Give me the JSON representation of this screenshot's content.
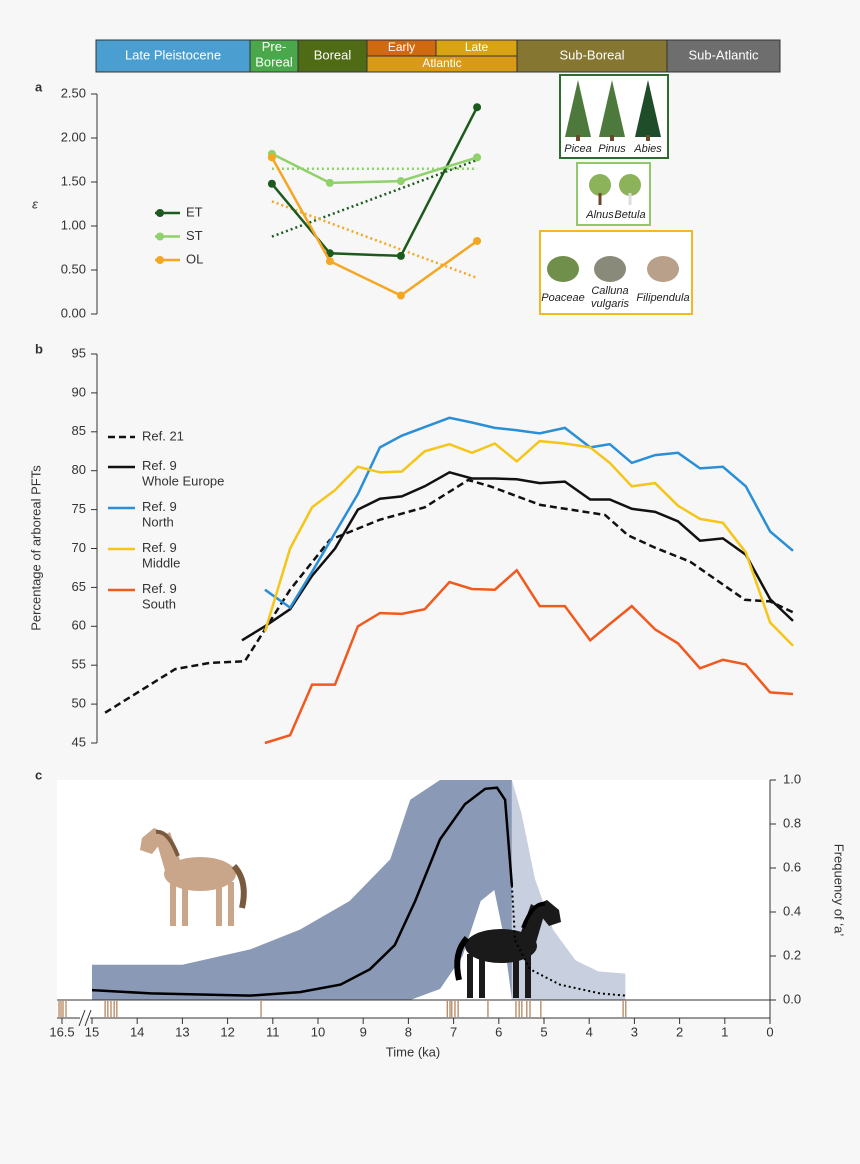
{
  "periods": [
    {
      "label": "Late Pleistocene",
      "color": "#4a9fd0"
    },
    {
      "label": "Pre-\nBoreal",
      "color": "#4aa84b"
    },
    {
      "label": "Boreal",
      "color": "#4f6b15"
    },
    {
      "label": "Early",
      "color": "#d06a10"
    },
    {
      "label": "Late",
      "color": "#d8a414"
    },
    {
      "label": "Atlantic",
      "color": "#d99a18"
    },
    {
      "label": "Sub-Boreal",
      "color": "#857632"
    },
    {
      "label": "Sub-Atlantic",
      "color": "#6e6e6e"
    }
  ],
  "plant_groups": [
    {
      "labels": [
        "Picea",
        "Pinus",
        "Abies"
      ],
      "color": "#2e6b2e"
    },
    {
      "labels": [
        "Alnus",
        "Betula"
      ],
      "color": "#8fc96b"
    },
    {
      "labels": [
        "Poaceae",
        "Calluna\nvulgaris",
        "Filipendula"
      ],
      "color": "#f5b820"
    }
  ],
  "chart_data": [
    {
      "type": "line",
      "panel_label": "a",
      "ylabel": "ε",
      "x": [
        11.15,
        9.91,
        8.39,
        6.76
      ],
      "xlim": [
        15,
        0
      ],
      "ylim": [
        0,
        2.5
      ],
      "yticks": [
        {
          "value": 0,
          "label": "0.00"
        },
        {
          "value": 0.5,
          "label": "0.50"
        },
        {
          "value": 1,
          "label": "1.00"
        },
        {
          "value": 1.5,
          "label": "1.50"
        },
        {
          "value": 2,
          "label": "2.00"
        },
        {
          "value": 2.5,
          "label": "2.50"
        }
      ],
      "series": [
        {
          "name": "ET",
          "color": "#1d5a1d",
          "values": [
            1.48,
            0.69,
            0.66,
            2.35
          ],
          "trend": [
            0.88,
            1.75
          ]
        },
        {
          "name": "ST",
          "color": "#8fd16a",
          "values": [
            1.82,
            1.49,
            1.51,
            1.78
          ],
          "trend": [
            1.65,
            1.65
          ]
        },
        {
          "name": "OL",
          "color": "#f5a623",
          "values": [
            1.78,
            0.6,
            0.21,
            0.83
          ],
          "trend": [
            1.28,
            0.41
          ]
        }
      ]
    },
    {
      "type": "line",
      "panel_label": "b",
      "ylabel": "Percentage of arboreal PFTs",
      "xlim": [
        15,
        0
      ],
      "ylim": [
        45,
        95
      ],
      "yticks": [
        45,
        50,
        55,
        60,
        65,
        70,
        75,
        80,
        85,
        90,
        95
      ],
      "series": [
        {
          "name": "Ref. 21",
          "color": "#111111",
          "dash": "dashed",
          "x": [
            14.72,
            13.22,
            12.48,
            11.73,
            10.76,
            9.91,
            8.84,
            7.88,
            6.95,
            6.48,
            5.41,
            4.02,
            3.53,
            2.95,
            2.2,
            1.03,
            0.49,
            0
          ],
          "values": [
            48.9,
            54.5,
            55.3,
            55.5,
            64.7,
            71.1,
            73.7,
            75.3,
            78.8,
            78,
            75.6,
            74.3,
            71.7,
            70.1,
            68.3,
            63.4,
            63.2,
            61.8
          ]
        },
        {
          "name": "Ref. 9\nWhole Europe",
          "color": "#111111",
          "dash": "solid",
          "x": [
            11.79,
            11.3,
            10.76,
            10.29,
            9.8,
            9.31,
            8.84,
            8.37,
            7.88,
            7.35,
            6.87,
            6.38,
            5.91,
            5.42,
            4.88,
            4.34,
            3.92,
            3.45,
            2.95,
            2.46,
            1.99,
            1.5,
            1.01,
            0.49,
            0
          ],
          "values": [
            58.2,
            60,
            62.2,
            66.5,
            70,
            75,
            76.4,
            76.7,
            78,
            79.8,
            79,
            79,
            78.9,
            78.4,
            78.6,
            76.3,
            76.3,
            75.1,
            74.7,
            73.5,
            71,
            71.3,
            69.2,
            63.5,
            60.7
          ]
        },
        {
          "name": "Ref. 9\nNorth",
          "color": "#2a8fd6",
          "dash": "solid",
          "x": [
            11.3,
            10.76,
            10.29,
            9.8,
            9.31,
            8.84,
            8.37,
            7.88,
            7.35,
            6.87,
            6.38,
            5.91,
            5.42,
            4.88,
            4.34,
            3.92,
            3.45,
            2.95,
            2.46,
            1.99,
            1.5,
            1.01,
            0.49,
            0
          ],
          "values": [
            64.7,
            62.4,
            67,
            72,
            77,
            83,
            84.5,
            85.6,
            86.8,
            86.2,
            85.5,
            85.2,
            84.8,
            85.5,
            83,
            83.4,
            81,
            82,
            82.3,
            80.3,
            80.5,
            78,
            72.2,
            69.7
          ]
        },
        {
          "name": "Ref. 9\nMiddle",
          "color": "#f5c518",
          "dash": "solid",
          "x": [
            11.3,
            10.76,
            10.29,
            9.8,
            9.31,
            8.84,
            8.37,
            7.88,
            7.35,
            6.87,
            6.38,
            5.91,
            5.42,
            4.88,
            4.34,
            3.92,
            3.45,
            2.95,
            2.46,
            1.99,
            1.5,
            1.01,
            0.49,
            0
          ],
          "values": [
            59.3,
            70,
            75.3,
            77.5,
            80.5,
            79.8,
            79.9,
            82.5,
            83.4,
            82.3,
            83.5,
            81.2,
            83.8,
            83.5,
            83,
            81,
            78,
            78.4,
            75.5,
            73.8,
            73.3,
            69.5,
            60.5,
            57.5
          ]
        },
        {
          "name": "Ref. 9\nSouth",
          "color": "#f05a1e",
          "dash": "solid",
          "x": [
            11.3,
            10.76,
            10.29,
            9.8,
            9.31,
            8.84,
            8.37,
            7.88,
            7.35,
            6.87,
            6.38,
            5.91,
            5.42,
            4.88,
            4.34,
            3.92,
            3.45,
            2.95,
            2.46,
            1.99,
            1.5,
            1.01,
            0.49,
            0
          ],
          "values": [
            45,
            46,
            52.5,
            52.5,
            60,
            61.7,
            61.6,
            62.2,
            65.7,
            64.8,
            64.7,
            67.2,
            62.6,
            62.6,
            58.2,
            60.3,
            62.6,
            59.6,
            57.8,
            54.6,
            55.7,
            55.1,
            51.5,
            51.3
          ]
        }
      ]
    },
    {
      "type": "area_line",
      "panel_label": "c",
      "xlabel": "Time (ka)",
      "ylabel": "Frequency of ‘a’",
      "xlim": [
        16.5,
        0
      ],
      "axis_break_at": 15,
      "xticks": [
        16.5,
        15,
        14,
        13,
        12,
        11,
        10,
        9,
        8,
        7,
        6,
        5,
        4,
        3,
        2,
        1,
        0
      ],
      "ylim": [
        0,
        1
      ],
      "yticks": [
        {
          "value": 0,
          "label": "0.0"
        },
        0.2,
        0.4,
        0.6,
        0.8,
        {
          "value": 1,
          "label": "1.0"
        }
      ],
      "bands": [
        {
          "color": "#8a99b6",
          "x": [
            15,
            13,
            11.5,
            10.4,
            9.3,
            8.4,
            7.96,
            7.3,
            6.8,
            6.4,
            6.1,
            5.9,
            5.71
          ],
          "lower": [
            0,
            0,
            0,
            0,
            0,
            0,
            0,
            0.05,
            0.2,
            0.45,
            0.5,
            0.3,
            0
          ],
          "upper": [
            0.16,
            0.16,
            0.23,
            0.32,
            0.45,
            0.64,
            0.91,
            1,
            1,
            1,
            1,
            1,
            1
          ]
        },
        {
          "color": "#c8d0df",
          "x": [
            5.71,
            5.5,
            5.2,
            4.8,
            4.3,
            3.8,
            3.2
          ],
          "lower": [
            0,
            0,
            0,
            0,
            0,
            0,
            0
          ],
          "upper": [
            1,
            0.85,
            0.55,
            0.32,
            0.18,
            0.13,
            0.12
          ]
        }
      ],
      "series": [
        {
          "color": "#000000",
          "dash": "solid",
          "x": [
            15,
            13.7,
            11.5,
            10.4,
            9.5,
            8.85,
            8.3,
            7.85,
            7.3,
            6.75,
            6.3,
            6.04,
            5.86,
            5.71
          ],
          "values": [
            0.045,
            0.03,
            0.02,
            0.036,
            0.07,
            0.14,
            0.25,
            0.45,
            0.73,
            0.89,
            0.96,
            0.965,
            0.91,
            0.52
          ]
        },
        {
          "color": "#000000",
          "dash": "dotted",
          "x": [
            5.71,
            5.64,
            5.31,
            4.65,
            3.76,
            3.2
          ],
          "values": [
            0.52,
            0.27,
            0.14,
            0.07,
            0.03,
            0.02
          ]
        }
      ],
      "samples": {
        "color": "#b07a50",
        "x": [
          16.65,
          16.55,
          16.45,
          16.3,
          14.71,
          14.65,
          14.58,
          14.51,
          14.45,
          11.26,
          7.14,
          7.08,
          7.04,
          6.97,
          6.9,
          6.24,
          5.62,
          5.55,
          5.49,
          5.38,
          5.31,
          5.07,
          3.25,
          3.19
        ]
      }
    }
  ]
}
